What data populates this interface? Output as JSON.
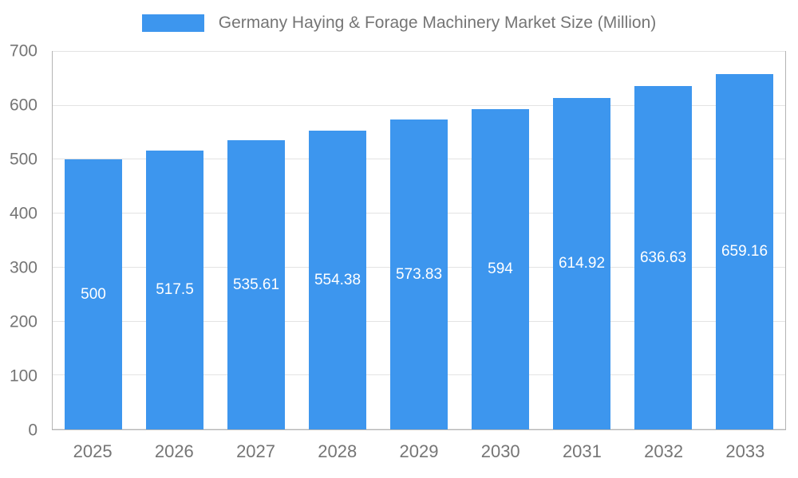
{
  "chart_data": {
    "type": "bar",
    "title": "Germany Haying & Forage Machinery Market Size (Million)",
    "categories": [
      "2025",
      "2026",
      "2027",
      "2028",
      "2029",
      "2030",
      "2031",
      "2032",
      "2033"
    ],
    "values": [
      500,
      517.5,
      535.61,
      554.38,
      573.83,
      594,
      614.92,
      636.63,
      659.16
    ],
    "value_labels": [
      "500",
      "517.5",
      "535.61",
      "554.38",
      "573.83",
      "594",
      "614.92",
      "636.63",
      "659.16"
    ],
    "xlabel": "",
    "ylabel": "",
    "ylim": [
      0,
      700
    ],
    "y_ticks": [
      0,
      100,
      200,
      300,
      400,
      500,
      600,
      700
    ],
    "y_tick_labels": [
      "0",
      "100",
      "200",
      "300",
      "400",
      "500",
      "600",
      "700"
    ],
    "grid": true,
    "legend_position": "top",
    "colors": {
      "bar": "#3d96ee",
      "bar_label": "#ffffff",
      "axis_text": "#757575",
      "gridline": "#e3e3e3",
      "plot_border": "#b4b4b4"
    }
  }
}
